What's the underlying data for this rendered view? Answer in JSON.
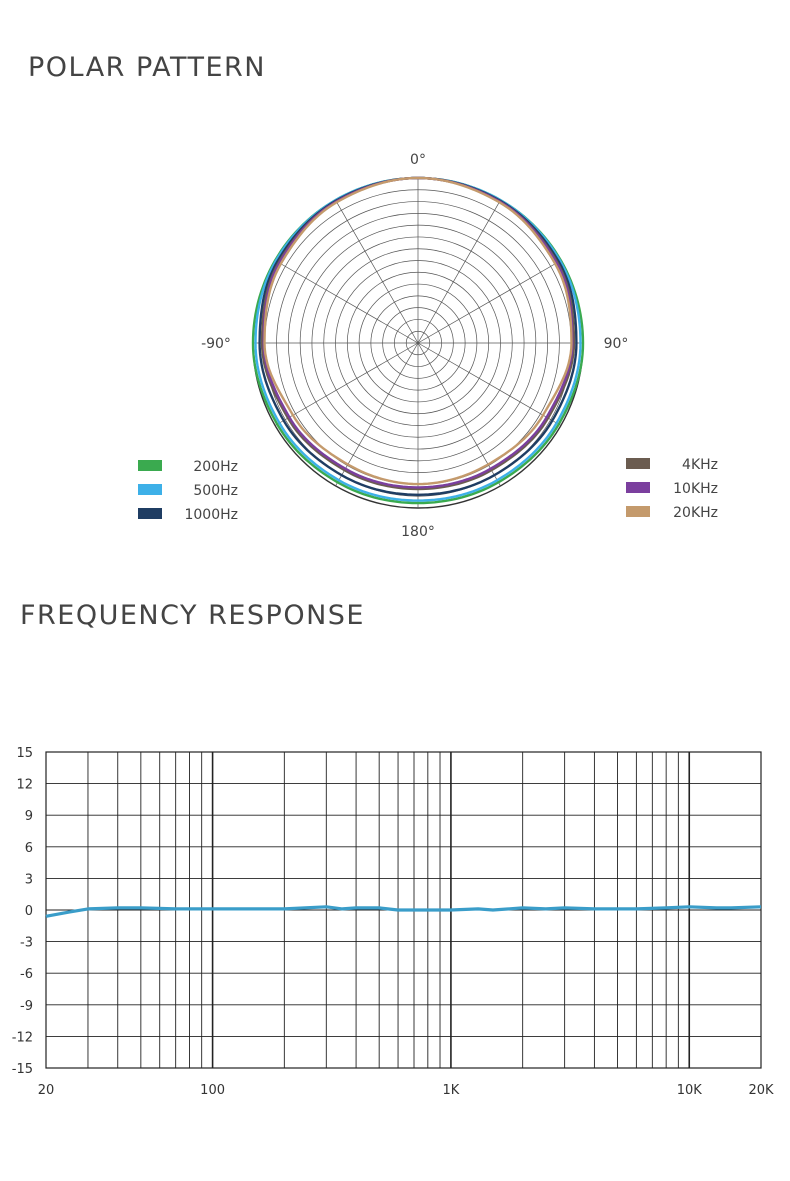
{
  "polar": {
    "title": "POLAR PATTERN",
    "angle_labels": {
      "top": "0°",
      "right": "90°",
      "bottom": "180°",
      "left": "-90°"
    },
    "legend_left": [
      {
        "label": "200Hz",
        "color": "#3aaa4f"
      },
      {
        "label": "500Hz",
        "color": "#3db0e8"
      },
      {
        "label": "1000Hz",
        "color": "#1f3d63"
      }
    ],
    "legend_right": [
      {
        "label": "4KHz",
        "color": "#6b5c50"
      },
      {
        "label": "10KHz",
        "color": "#7b3f9e"
      },
      {
        "label": "20KHz",
        "color": "#c49a6c"
      }
    ]
  },
  "frequency": {
    "title": "FREQUENCY RESPONSE",
    "line_color": "#3a9dc9"
  },
  "chart_data": [
    {
      "type": "line",
      "title": "POLAR PATTERN",
      "coordinate": "polar",
      "angle_unit": "degrees",
      "radial_range": [
        0,
        1
      ],
      "grid": true,
      "angles": [
        0,
        30,
        60,
        90,
        120,
        150,
        180,
        210,
        240,
        270,
        300,
        330,
        360
      ],
      "series": [
        {
          "name": "200Hz",
          "values": [
            1.0,
            1.0,
            1.0,
            1.0,
            0.985,
            0.975,
            0.97,
            0.975,
            0.985,
            1.0,
            1.0,
            1.0,
            1.0
          ]
        },
        {
          "name": "500Hz",
          "values": [
            1.0,
            1.0,
            0.995,
            0.985,
            0.97,
            0.96,
            0.955,
            0.96,
            0.97,
            0.985,
            0.995,
            1.0,
            1.0
          ]
        },
        {
          "name": "1000Hz",
          "values": [
            1.0,
            0.995,
            0.985,
            0.96,
            0.94,
            0.925,
            0.92,
            0.925,
            0.94,
            0.96,
            0.985,
            0.995,
            1.0
          ]
        },
        {
          "name": "4KHz",
          "values": [
            1.0,
            0.99,
            0.975,
            0.945,
            0.91,
            0.89,
            0.885,
            0.89,
            0.91,
            0.945,
            0.975,
            0.99,
            1.0
          ]
        },
        {
          "name": "10KHz",
          "values": [
            1.0,
            0.99,
            0.97,
            0.935,
            0.9,
            0.88,
            0.875,
            0.88,
            0.9,
            0.935,
            0.97,
            0.99,
            1.0
          ]
        },
        {
          "name": "20KHz",
          "values": [
            1.0,
            0.985,
            0.96,
            0.93,
            0.875,
            0.85,
            0.855,
            0.85,
            0.875,
            0.93,
            0.96,
            0.985,
            1.0
          ]
        }
      ]
    },
    {
      "type": "line",
      "title": "FREQUENCY RESPONSE",
      "xscale": "log",
      "xlim": [
        20,
        20000
      ],
      "ylim": [
        -15,
        15
      ],
      "grid": true,
      "xticks": [
        {
          "value": 20,
          "label": "20"
        },
        {
          "value": 100,
          "label": "100"
        },
        {
          "value": 1000,
          "label": "1K"
        },
        {
          "value": 10000,
          "label": "10K"
        },
        {
          "value": 20000,
          "label": "20K"
        }
      ],
      "yticks": [
        15,
        12,
        9,
        6,
        3,
        0,
        -3,
        -6,
        -9,
        -12,
        -15
      ],
      "series": [
        {
          "x": [
            20,
            25,
            30,
            40,
            50,
            70,
            100,
            200,
            300,
            350,
            400,
            500,
            600,
            800,
            1000,
            1300,
            1500,
            2000,
            2500,
            3000,
            4000,
            6000,
            8000,
            10000,
            13000,
            15000,
            20000
          ],
          "y": [
            -0.6,
            -0.2,
            0.1,
            0.2,
            0.2,
            0.1,
            0.1,
            0.1,
            0.3,
            0.1,
            0.2,
            0.2,
            0.0,
            0.0,
            0.0,
            0.1,
            0.0,
            0.2,
            0.1,
            0.2,
            0.1,
            0.1,
            0.2,
            0.3,
            0.2,
            0.2,
            0.3
          ]
        }
      ]
    }
  ]
}
